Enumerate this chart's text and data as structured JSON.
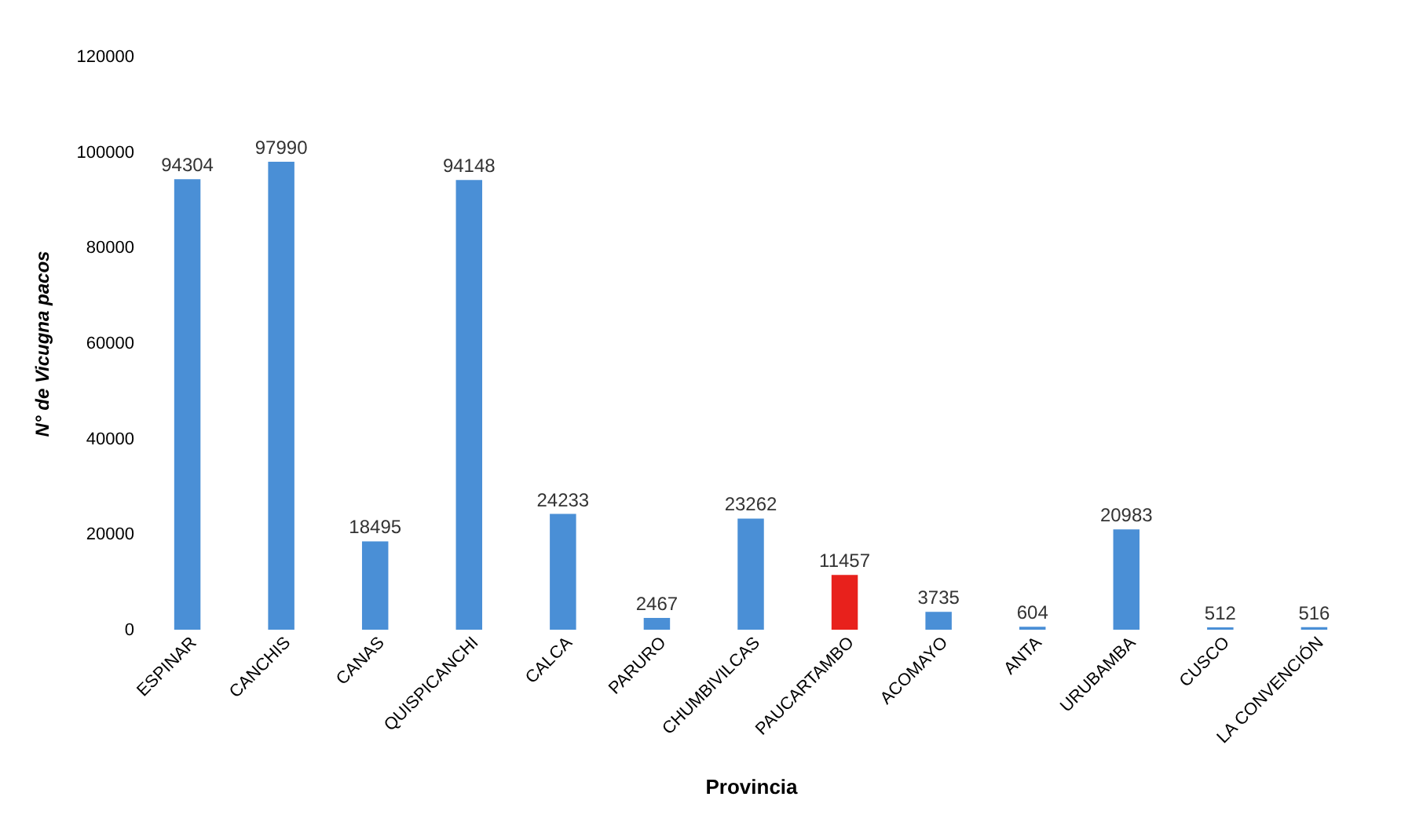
{
  "chart_data": {
    "type": "bar",
    "xlabel": "Provincia",
    "ylabel": "N° de Vicugna pacos",
    "categories": [
      "ESPINAR",
      "CANCHIS",
      "CANAS",
      "QUISPICANCHI",
      "CALCA",
      "PARURO",
      "CHUMBIVILCAS",
      "PAUCARTAMBO",
      "ACOMAYO",
      "ANTA",
      "URUBAMBA",
      "CUSCO",
      "LA CONVENCIÓN"
    ],
    "values": [
      94304,
      97990,
      18495,
      94148,
      24233,
      2467,
      23262,
      11457,
      3735,
      604,
      20983,
      512,
      516
    ],
    "colors": [
      "#4a8fd6",
      "#4a8fd6",
      "#4a8fd6",
      "#4a8fd6",
      "#4a8fd6",
      "#4a8fd6",
      "#4a8fd6",
      "#e8211c",
      "#4a8fd6",
      "#4a8fd6",
      "#4a8fd6",
      "#4a8fd6",
      "#4a8fd6"
    ],
    "ylim": [
      0,
      120000
    ],
    "yticks": [
      0,
      20000,
      40000,
      60000,
      80000,
      100000,
      120000
    ],
    "grid": false,
    "data_labels": true
  }
}
